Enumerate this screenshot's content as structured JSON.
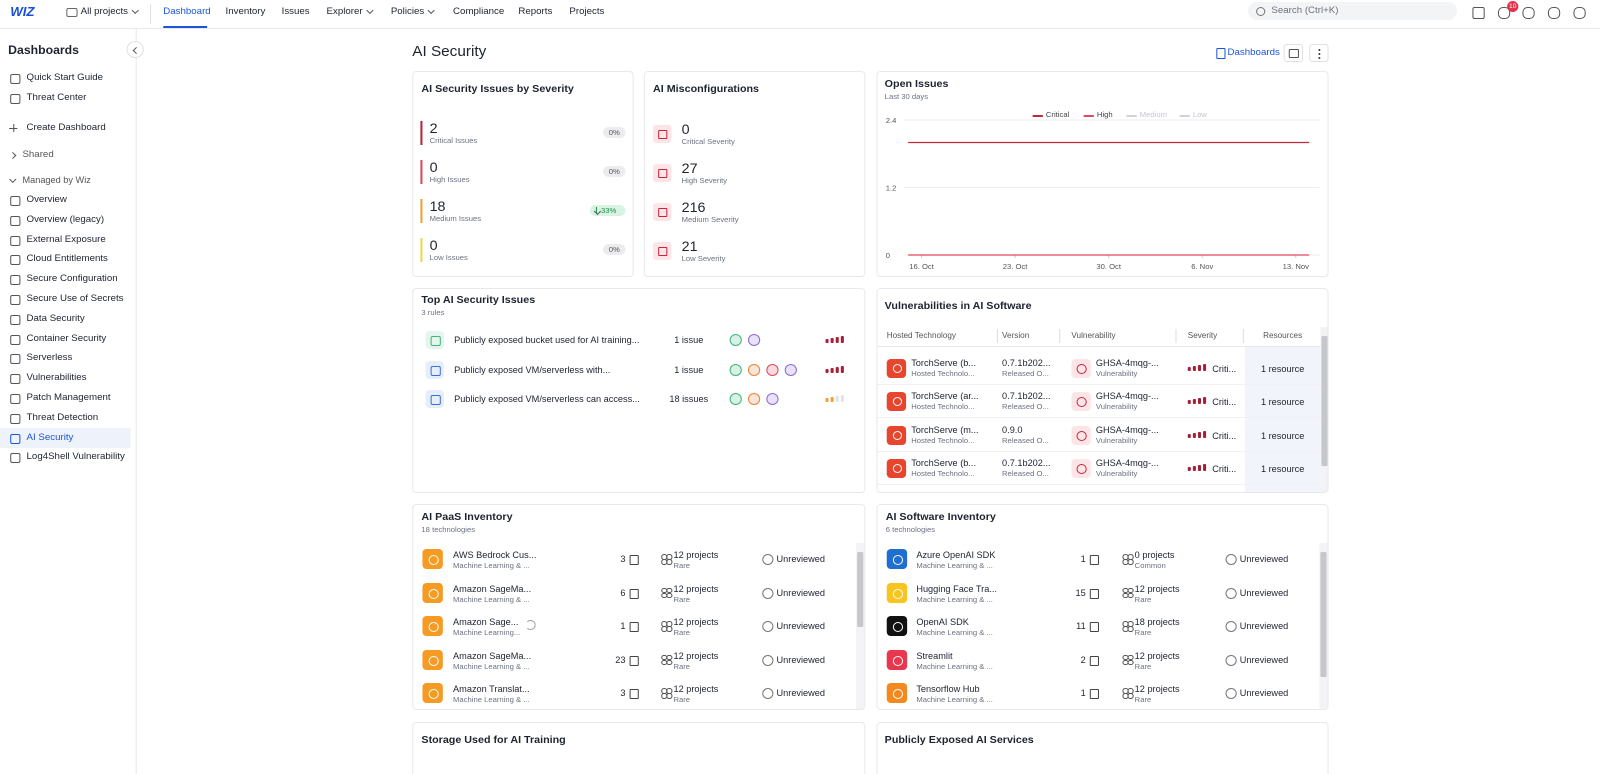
{
  "nav": {
    "logo": "WIZ",
    "project": "All projects",
    "items": [
      "Dashboard",
      "Inventory",
      "Issues",
      "Explorer",
      "Policies",
      "Compliance",
      "Reports",
      "Projects"
    ],
    "active_item": 0,
    "dropdown_items": [
      3,
      4
    ],
    "search": "Search (Ctrl+K)",
    "notifications": "10"
  },
  "sidebar": {
    "title": "Dashboards",
    "top": [
      "Quick Start Guide",
      "Threat Center"
    ],
    "create": "Create Dashboard",
    "shared": "Shared",
    "managed": "Managed by Wiz",
    "items": [
      "Overview",
      "Overview (legacy)",
      "External Exposure",
      "Cloud Entitlements",
      "Secure Configuration",
      "Secure Use of Secrets",
      "Data Security",
      "Container Security",
      "Serverless",
      "Vulnerabilities",
      "Patch Management",
      "Threat Detection",
      "AI Security",
      "Log4Shell Vulnerability"
    ],
    "active_item": 12
  },
  "page": {
    "title": "AI Security",
    "dashboards_button": "Dashboards"
  },
  "severity": {
    "title": "AI Security Issues by Severity",
    "items": [
      {
        "value": 2,
        "label": "Critical Issues",
        "change": "0%",
        "color": "#b3243b"
      },
      {
        "value": 0,
        "label": "High Issues",
        "change": "0%",
        "color": "#d9485d"
      },
      {
        "value": 18,
        "label": "Medium Issues",
        "change": "33%",
        "trend": "down",
        "color": "#f0a030"
      },
      {
        "value": 0,
        "label": "Low Issues",
        "change": "0%",
        "color": "#f2d54b"
      }
    ]
  },
  "misconfig": {
    "title": "AI Misconfigurations",
    "items": [
      {
        "value": 0,
        "label": "Critical Severity"
      },
      {
        "value": 27,
        "label": "High Severity"
      },
      {
        "value": 216,
        "label": "Medium Severity"
      },
      {
        "value": 21,
        "label": "Low Severity"
      }
    ]
  },
  "open_issues": {
    "title": "Open Issues",
    "subtitle": "Last 30 days",
    "ylim": [
      0,
      2.4
    ],
    "yticks": [
      0,
      1.2,
      2.4
    ],
    "xticks": [
      {
        "value": 1,
        "label": "16. Oct"
      },
      {
        "value": 8,
        "label": "23. Oct"
      },
      {
        "value": 15,
        "label": "30. Oct"
      },
      {
        "value": 22,
        "label": "6. Nov"
      },
      {
        "value": 29,
        "label": "13. Nov"
      }
    ],
    "series": [
      {
        "name": "Critical",
        "color": "#c0283c",
        "values": [
          2,
          2,
          2,
          2,
          2,
          2,
          2,
          2,
          2,
          2,
          2,
          2,
          2,
          2,
          2,
          2,
          2,
          2,
          2,
          2,
          2,
          2,
          2,
          2,
          2,
          2,
          2,
          2,
          2,
          2,
          2
        ]
      },
      {
        "name": "High",
        "color": "#e0485c",
        "values": [
          0,
          0,
          0,
          0,
          0,
          0,
          0,
          0,
          0,
          0,
          0,
          0,
          0,
          0,
          0,
          0,
          0,
          0,
          0,
          0,
          0,
          0,
          0,
          0,
          0,
          0,
          0,
          0,
          0,
          0,
          0
        ]
      },
      {
        "name": "Medium",
        "color": "#cfd2d8",
        "hidden": true
      },
      {
        "name": "Low",
        "color": "#cfd2d8",
        "hidden": true
      }
    ]
  },
  "top_issues": {
    "title": "Top AI Security Issues",
    "subtitle": "3 rules",
    "rows": [
      {
        "title": "Publicly exposed bucket used for AI training...",
        "count": "1 issue",
        "severity": "critical"
      },
      {
        "title": "Publicly exposed VM/serverless with...",
        "count": "1 issue",
        "severity": "critical"
      },
      {
        "title": "Publicly exposed VM/serverless can access...",
        "count": "18 issues",
        "severity": "medium"
      }
    ]
  },
  "vulns": {
    "title": "Vulnerabilities in AI Software",
    "columns": [
      "Hosted Technology",
      "Version",
      "Vulnerability",
      "Severity",
      "Resources"
    ],
    "rows": [
      {
        "tech": "TorchServe (b...",
        "tech_sub": "Hosted Technolo...",
        "version": "0.7.1b202...",
        "version_sub": "Released O...",
        "vuln": "GHSA-4mqg-...",
        "vuln_sub": "Vulnerability",
        "severity": "Criti...",
        "resources": "1 resource"
      },
      {
        "tech": "TorchServe (ar...",
        "tech_sub": "Hosted Technolo...",
        "version": "0.7.1b202...",
        "version_sub": "Released O...",
        "vuln": "GHSA-4mqg-...",
        "vuln_sub": "Vulnerability",
        "severity": "Criti...",
        "resources": "1 resource"
      },
      {
        "tech": "TorchServe (m...",
        "tech_sub": "Hosted Technolo...",
        "version": "0.9.0",
        "version_sub": "Released O...",
        "vuln": "GHSA-4mqg-...",
        "vuln_sub": "Vulnerability",
        "severity": "Criti...",
        "resources": "1 resource"
      },
      {
        "tech": "TorchServe (b...",
        "tech_sub": "Hosted Technolo...",
        "version": "0.7.1b202...",
        "version_sub": "Released O...",
        "vuln": "GHSA-4mqg-...",
        "vuln_sub": "Vulnerability",
        "severity": "Criti...",
        "resources": "1 resource"
      }
    ]
  },
  "paas": {
    "title": "AI PaaS Inventory",
    "subtitle": "18 technologies",
    "rows": [
      {
        "name": "AWS Bedrock Cus...",
        "category": "Machine Learning & ...",
        "count": 3,
        "projects": "12 projects",
        "rarity": "Rare",
        "status": "Unreviewed"
      },
      {
        "name": "Amazon SageMa...",
        "category": "Machine Learning & ...",
        "count": 6,
        "projects": "12 projects",
        "rarity": "Rare",
        "status": "Unreviewed"
      },
      {
        "name": "Amazon Sage...",
        "category": "Machine Learning...",
        "count": 1,
        "projects": "12 projects",
        "rarity": "Rare",
        "status": "Unreviewed"
      },
      {
        "name": "Amazon SageMa...",
        "category": "Machine Learning & ...",
        "count": 23,
        "projects": "12 projects",
        "rarity": "Rare",
        "status": "Unreviewed"
      },
      {
        "name": "Amazon Translat...",
        "category": "Machine Learning & ...",
        "count": 3,
        "projects": "12 projects",
        "rarity": "Rare",
        "status": "Unreviewed"
      }
    ]
  },
  "software": {
    "title": "AI Software Inventory",
    "subtitle": "6 technologies",
    "rows": [
      {
        "name": "Azure OpenAI SDK",
        "category": "Machine Learning & ...",
        "count": 1,
        "projects": "0 projects",
        "rarity": "Common",
        "status": "Unreviewed"
      },
      {
        "name": "Hugging Face Tra...",
        "category": "Machine Learning & ...",
        "count": 15,
        "projects": "12 projects",
        "rarity": "Rare",
        "status": "Unreviewed"
      },
      {
        "name": "OpenAI SDK",
        "category": "Machine Learning & ...",
        "count": 11,
        "projects": "18 projects",
        "rarity": "Rare",
        "status": "Unreviewed"
      },
      {
        "name": "Streamlit",
        "category": "Machine Learning & ...",
        "count": 2,
        "projects": "12 projects",
        "rarity": "Rare",
        "status": "Unreviewed"
      },
      {
        "name": "Tensorflow Hub",
        "category": "Machine Learning & ...",
        "count": 1,
        "projects": "12 projects",
        "rarity": "Rare",
        "status": "Unreviewed"
      }
    ]
  },
  "bottom": [
    "Storage Used for AI Training",
    "Publicly Exposed AI Services"
  ]
}
